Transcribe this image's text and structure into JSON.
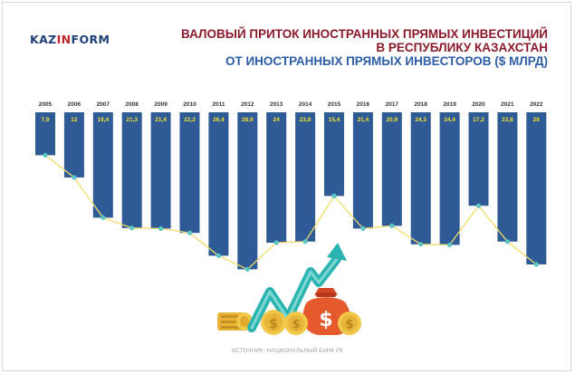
{
  "logo": {
    "part1": "KAZ",
    "part2": "IN",
    "part3": "FORM"
  },
  "title": {
    "line1": "ВАЛОВЫЙ ПРИТОК ИНОСТРАННЫХ ПРЯМЫХ ИНВЕСТИЦИЙ",
    "line2": "В РЕСПУБЛИКУ КАЗАХСТАН",
    "line3": "ОТ ИНОСТРАННЫХ ПРЯМЫХ ИНВЕСТОРОВ ($ МЛРД)"
  },
  "source": "ИСТОЧНИК: НАЦИОНАЛЬНЫЙ БАНК РК",
  "colors": {
    "bar": "#2e5a96",
    "value_text": "#f5e02e",
    "line": "#f2dc6a",
    "marker": "#5bc7c5",
    "title_dark": "#8c1a2c",
    "title_blue": "#2d5da6"
  },
  "chart_data": {
    "type": "bar",
    "categories": [
      "2005",
      "2006",
      "2007",
      "2008",
      "2009",
      "2010",
      "2011",
      "2012",
      "2013",
      "2014",
      "2015",
      "2016",
      "2017",
      "2018",
      "2019",
      "2020",
      "2021",
      "2022"
    ],
    "values": [
      7.9,
      12,
      19.4,
      21.3,
      21.4,
      22.2,
      26.4,
      28.9,
      24,
      23.8,
      15.4,
      21.4,
      20.9,
      24.3,
      24.4,
      17.2,
      23.8,
      28
    ],
    "value_labels": [
      "7,9",
      "12",
      "19,4",
      "21,3",
      "21,4",
      "22,2",
      "26,4",
      "28,9",
      "24",
      "23,8",
      "15,4",
      "21,4",
      "20,9",
      "24,3",
      "24,4",
      "17,2",
      "23,8",
      "28"
    ],
    "orientation": "downward",
    "ylim": [
      0,
      30
    ],
    "grid": false,
    "legend": "none",
    "overlay": "line connecting bar ends with circle markers"
  }
}
